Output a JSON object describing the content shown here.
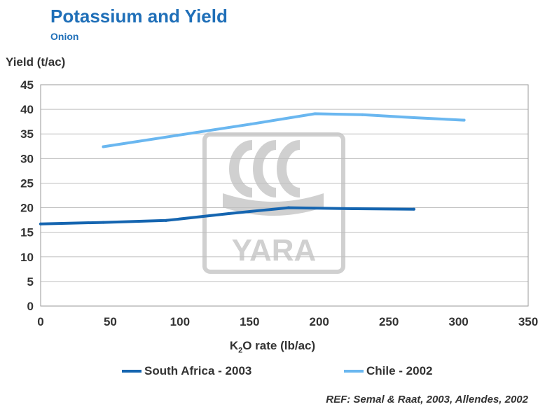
{
  "header": {
    "title": "Potassium and Yield",
    "subtitle": "Onion"
  },
  "reference": "REF: Semal & Raat, 2003, Allendes, 2002",
  "watermark": {
    "text": "YARA",
    "color": "#d0d0d0"
  },
  "chart_data": {
    "type": "line",
    "ylabel": "Yield (t/ac)",
    "xlabel_main": "K",
    "xlabel_sub": "2",
    "xlabel_rest": "O rate (lb/ac)",
    "xlim": [
      0,
      350
    ],
    "ylim": [
      0,
      45
    ],
    "xticks": [
      "0",
      "50",
      "100",
      "150",
      "200",
      "250",
      "300",
      "350"
    ],
    "yticks": [
      "0",
      "5",
      "10",
      "15",
      "20",
      "25",
      "30",
      "35",
      "40",
      "45"
    ],
    "grid": true,
    "legend_position": "bottom",
    "series": [
      {
        "name": "South Africa - 2003",
        "color": "#1565b0",
        "points": [
          [
            0,
            16.7
          ],
          [
            45,
            17.0
          ],
          [
            90,
            17.4
          ],
          [
            135,
            18.8
          ],
          [
            178,
            20.0
          ],
          [
            224,
            19.8
          ],
          [
            268,
            19.7
          ]
        ]
      },
      {
        "name": "Chile - 2002",
        "color": "#6ab7f0",
        "points": [
          [
            45,
            32.4
          ],
          [
            98,
            34.7
          ],
          [
            151,
            37.0
          ],
          [
            197,
            39.1
          ],
          [
            231,
            38.9
          ],
          [
            268,
            38.3
          ],
          [
            304,
            37.8
          ]
        ]
      }
    ]
  }
}
